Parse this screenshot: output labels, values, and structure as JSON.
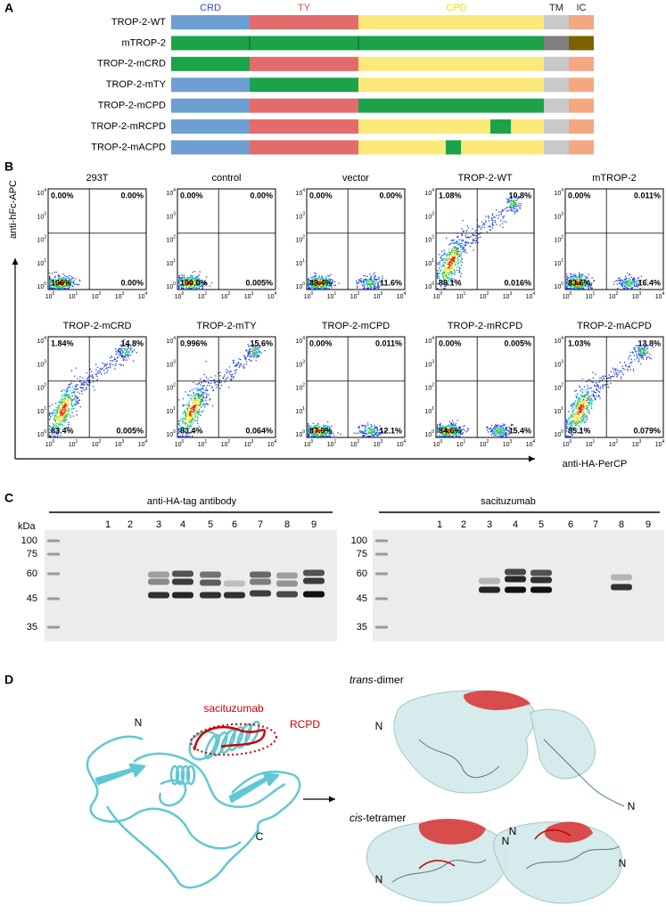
{
  "panel_a": {
    "label": "A",
    "domains": [
      "CRD",
      "TY",
      "CPD",
      "TM",
      "IC"
    ],
    "constructs": [
      "TROP-2-WT",
      "mTROP-2",
      "TROP-2-mCRD",
      "TROP-2-mTY",
      "TROP-2-mCPD",
      "TROP-2-mRCPD",
      "TROP-2-mACPD"
    ]
  },
  "panel_b": {
    "label": "B",
    "y_axis_label": "anti-hFc-APC",
    "x_axis_label": "anti-HA-PerCP",
    "tick_base": "10",
    "tick_exponents": [
      "0",
      "1",
      "2",
      "3",
      "4"
    ],
    "plots": [
      {
        "title": "293T",
        "upper_left": "0.00%",
        "upper_right": "0.00%",
        "lower_left": "100%",
        "lower_right": "0.00%"
      },
      {
        "title": "control",
        "upper_left": "0.00%",
        "upper_right": "0.00%",
        "lower_left": "100.0%",
        "lower_right": "0.005%"
      },
      {
        "title": "vector",
        "upper_left": "0.00%",
        "upper_right": "0.00%",
        "lower_left": "88.4%",
        "lower_right": "11.6%"
      },
      {
        "title": "TROP-2-WT",
        "upper_left": "1.08%",
        "upper_right": "10.8%",
        "lower_left": "88.1%",
        "lower_right": "0.016%"
      },
      {
        "title": "mTROP-2",
        "upper_left": "0.00%",
        "upper_right": "0.011%",
        "lower_left": "83.6%",
        "lower_right": "16.4%"
      },
      {
        "title": "TROP-2-mCRD",
        "upper_left": "1.84%",
        "upper_right": "14.8%",
        "lower_left": "83.4%",
        "lower_right": "0.005%"
      },
      {
        "title": "TROP-2-mTY",
        "upper_left": "0.996%",
        "upper_right": "15.6%",
        "lower_left": "83.4%",
        "lower_right": "0.064%"
      },
      {
        "title": "TROP-2-mCPD",
        "upper_left": "0.00%",
        "upper_right": "0.011%",
        "lower_left": "87.9%",
        "lower_right": "12.1%"
      },
      {
        "title": "TROP-2-mRCPD",
        "upper_left": "0.00%",
        "upper_right": "0.005%",
        "lower_left": "84.6%",
        "lower_right": "15.4%"
      },
      {
        "title": "TROP-2-mACPD",
        "upper_left": "1.03%",
        "upper_right": "13.8%",
        "lower_left": "85.1%",
        "lower_right": "0.079%"
      }
    ]
  },
  "panel_c": {
    "label": "C",
    "unit": "kDa",
    "blots": [
      {
        "title": "anti-HA-tag antibody",
        "markers": [
          "100",
          "75",
          "60",
          "45",
          "35"
        ],
        "lanes": [
          "1",
          "2",
          "3",
          "4",
          "5",
          "6",
          "7",
          "8",
          "9"
        ]
      },
      {
        "title": "sacituzumab",
        "markers": [
          "100",
          "75",
          "60",
          "45",
          "35"
        ],
        "lanes": [
          "1",
          "2",
          "3",
          "4",
          "5",
          "6",
          "7",
          "8",
          "9"
        ]
      }
    ]
  },
  "panel_d": {
    "label": "D",
    "antibody": "sacituzumab",
    "region": "RCPD",
    "n_term": "N",
    "c_term": "C",
    "trans_dimer": {
      "italic": "trans",
      "text": "-dimer",
      "n_labels": [
        "N",
        "N"
      ]
    },
    "cis_tetramer": {
      "italic": "cis",
      "text": "-tetramer",
      "n_labels": [
        "N",
        "N",
        "N",
        "N"
      ]
    }
  }
}
